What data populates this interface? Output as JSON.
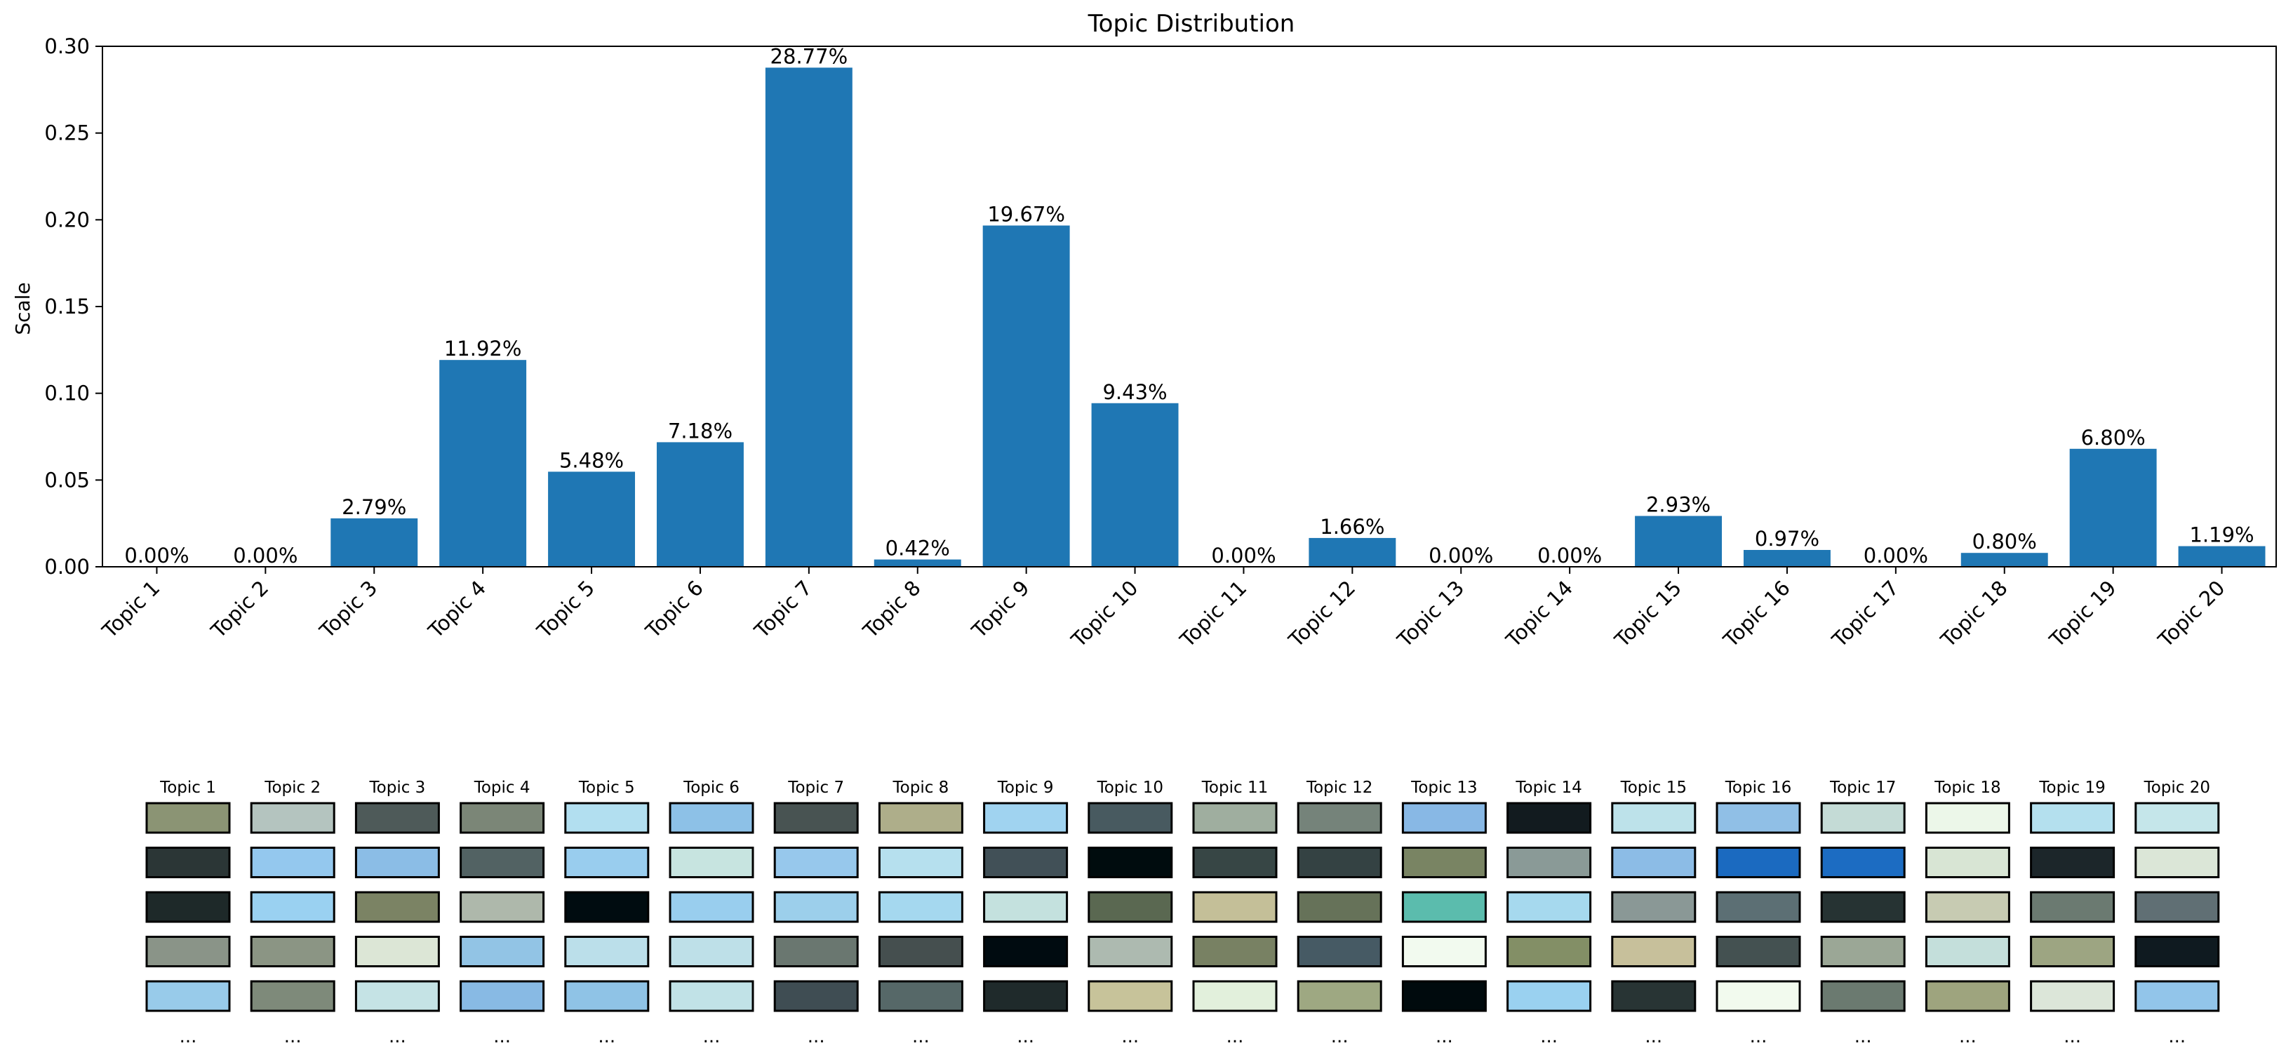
{
  "chart_data": {
    "type": "bar",
    "title": "Topic Distribution",
    "xlabel": "",
    "ylabel": "Scale",
    "ylim": [
      0,
      0.3
    ],
    "yticks": [
      "0.00",
      "0.05",
      "0.10",
      "0.15",
      "0.20",
      "0.25",
      "0.30"
    ],
    "grid": false,
    "bar_color": "#1f77b4",
    "categories": [
      "Topic 1",
      "Topic 2",
      "Topic 3",
      "Topic 4",
      "Topic 5",
      "Topic 6",
      "Topic 7",
      "Topic 8",
      "Topic 9",
      "Topic 10",
      "Topic 11",
      "Topic 12",
      "Topic 13",
      "Topic 14",
      "Topic 15",
      "Topic 16",
      "Topic 17",
      "Topic 18",
      "Topic 19",
      "Topic 20"
    ],
    "values": [
      0.0,
      0.0,
      0.0279,
      0.1192,
      0.0548,
      0.0718,
      0.2877,
      0.0042,
      0.1967,
      0.0943,
      0.0,
      0.0166,
      0.0,
      0.0,
      0.0293,
      0.0097,
      0.0,
      0.008,
      0.068,
      0.0119
    ],
    "data_labels": [
      "0.00%",
      "0.00%",
      "2.79%",
      "11.92%",
      "5.48%",
      "7.18%",
      "28.77%",
      "0.42%",
      "19.67%",
      "9.43%",
      "0.00%",
      "1.66%",
      "0.00%",
      "0.00%",
      "2.93%",
      "0.97%",
      "0.00%",
      "0.80%",
      "6.80%",
      "1.19%"
    ]
  },
  "palette": {
    "more_indicator": "...",
    "topics": [
      {
        "label": "Topic 1",
        "colors": [
          "#8b9474",
          "#2b3636",
          "#1e2929",
          "#8a9488",
          "#98cbea"
        ]
      },
      {
        "label": "Topic 2",
        "colors": [
          "#b4c4bf",
          "#94c8ee",
          "#9ad1f1",
          "#8b9584",
          "#7e8a7a"
        ]
      },
      {
        "label": "Topic 3",
        "colors": [
          "#4e5a59",
          "#8bbde6",
          "#7b8364",
          "#dce6d6",
          "#c5e3e5"
        ]
      },
      {
        "label": "Topic 4",
        "colors": [
          "#7b8677",
          "#526263",
          "#aeb8ab",
          "#92c4e5",
          "#88bae4"
        ]
      },
      {
        "label": "Topic 5",
        "colors": [
          "#b2dff0",
          "#99cdee",
          "#000c10",
          "#bbdfea",
          "#8fc3e6"
        ]
      },
      {
        "label": "Topic 6",
        "colors": [
          "#8dc1e7",
          "#c7e4e0",
          "#99ceee",
          "#bee0e8",
          "#c1e2e7"
        ]
      },
      {
        "label": "Topic 7",
        "colors": [
          "#485352",
          "#97c8ec",
          "#9ccfeb",
          "#6a7770",
          "#3f4d53"
        ]
      },
      {
        "label": "Topic 8",
        "colors": [
          "#aeae8a",
          "#b6e0ee",
          "#a5d8ef",
          "#454f4f",
          "#566868"
        ]
      },
      {
        "label": "Topic 9",
        "colors": [
          "#a0d3f0",
          "#415057",
          "#c4e1de",
          "#000b10",
          "#1f2a2b"
        ]
      },
      {
        "label": "Topic 10",
        "colors": [
          "#485a60",
          "#000c0e",
          "#5a6851",
          "#adbab0",
          "#c7c39a"
        ]
      },
      {
        "label": "Topic 11",
        "colors": [
          "#9fae9f",
          "#374645",
          "#c4bf98",
          "#788163",
          "#e2f0dc"
        ]
      },
      {
        "label": "Topic 12",
        "colors": [
          "#75837a",
          "#344243",
          "#667259",
          "#465a64",
          "#9ea882"
        ]
      },
      {
        "label": "Topic 13",
        "colors": [
          "#88b8e5",
          "#798463",
          "#5bbcad",
          "#f2faef",
          "#000a0d"
        ]
      },
      {
        "label": "Topic 14",
        "colors": [
          "#121b1f",
          "#8a9a97",
          "#a6d9ee",
          "#838f66",
          "#9ad1f0"
        ]
      },
      {
        "label": "Topic 15",
        "colors": [
          "#bde2ea",
          "#8cbce6",
          "#8a9896",
          "#c7c09b",
          "#283434"
        ]
      },
      {
        "label": "Topic 16",
        "colors": [
          "#90bfe6",
          "#1b6ac0",
          "#5c6f74",
          "#445151",
          "#f2faee"
        ]
      },
      {
        "label": "Topic 17",
        "colors": [
          "#c4dbd6",
          "#1c6cc2",
          "#263333",
          "#9ba796",
          "#6b7a70"
        ]
      },
      {
        "label": "Topic 18",
        "colors": [
          "#ecf7e9",
          "#d8e5d4",
          "#c7cbb2",
          "#c4dfdb",
          "#9ea47e"
        ]
      },
      {
        "label": "Topic 19",
        "colors": [
          "#b4e0ee",
          "#1c262a",
          "#6b7a71",
          "#9da582",
          "#dce6d9"
        ]
      },
      {
        "label": "Topic 20",
        "colors": [
          "#c5e6ea",
          "#dbe6d7",
          "#606f74",
          "#0f1a20",
          "#92c5ea"
        ]
      }
    ]
  }
}
